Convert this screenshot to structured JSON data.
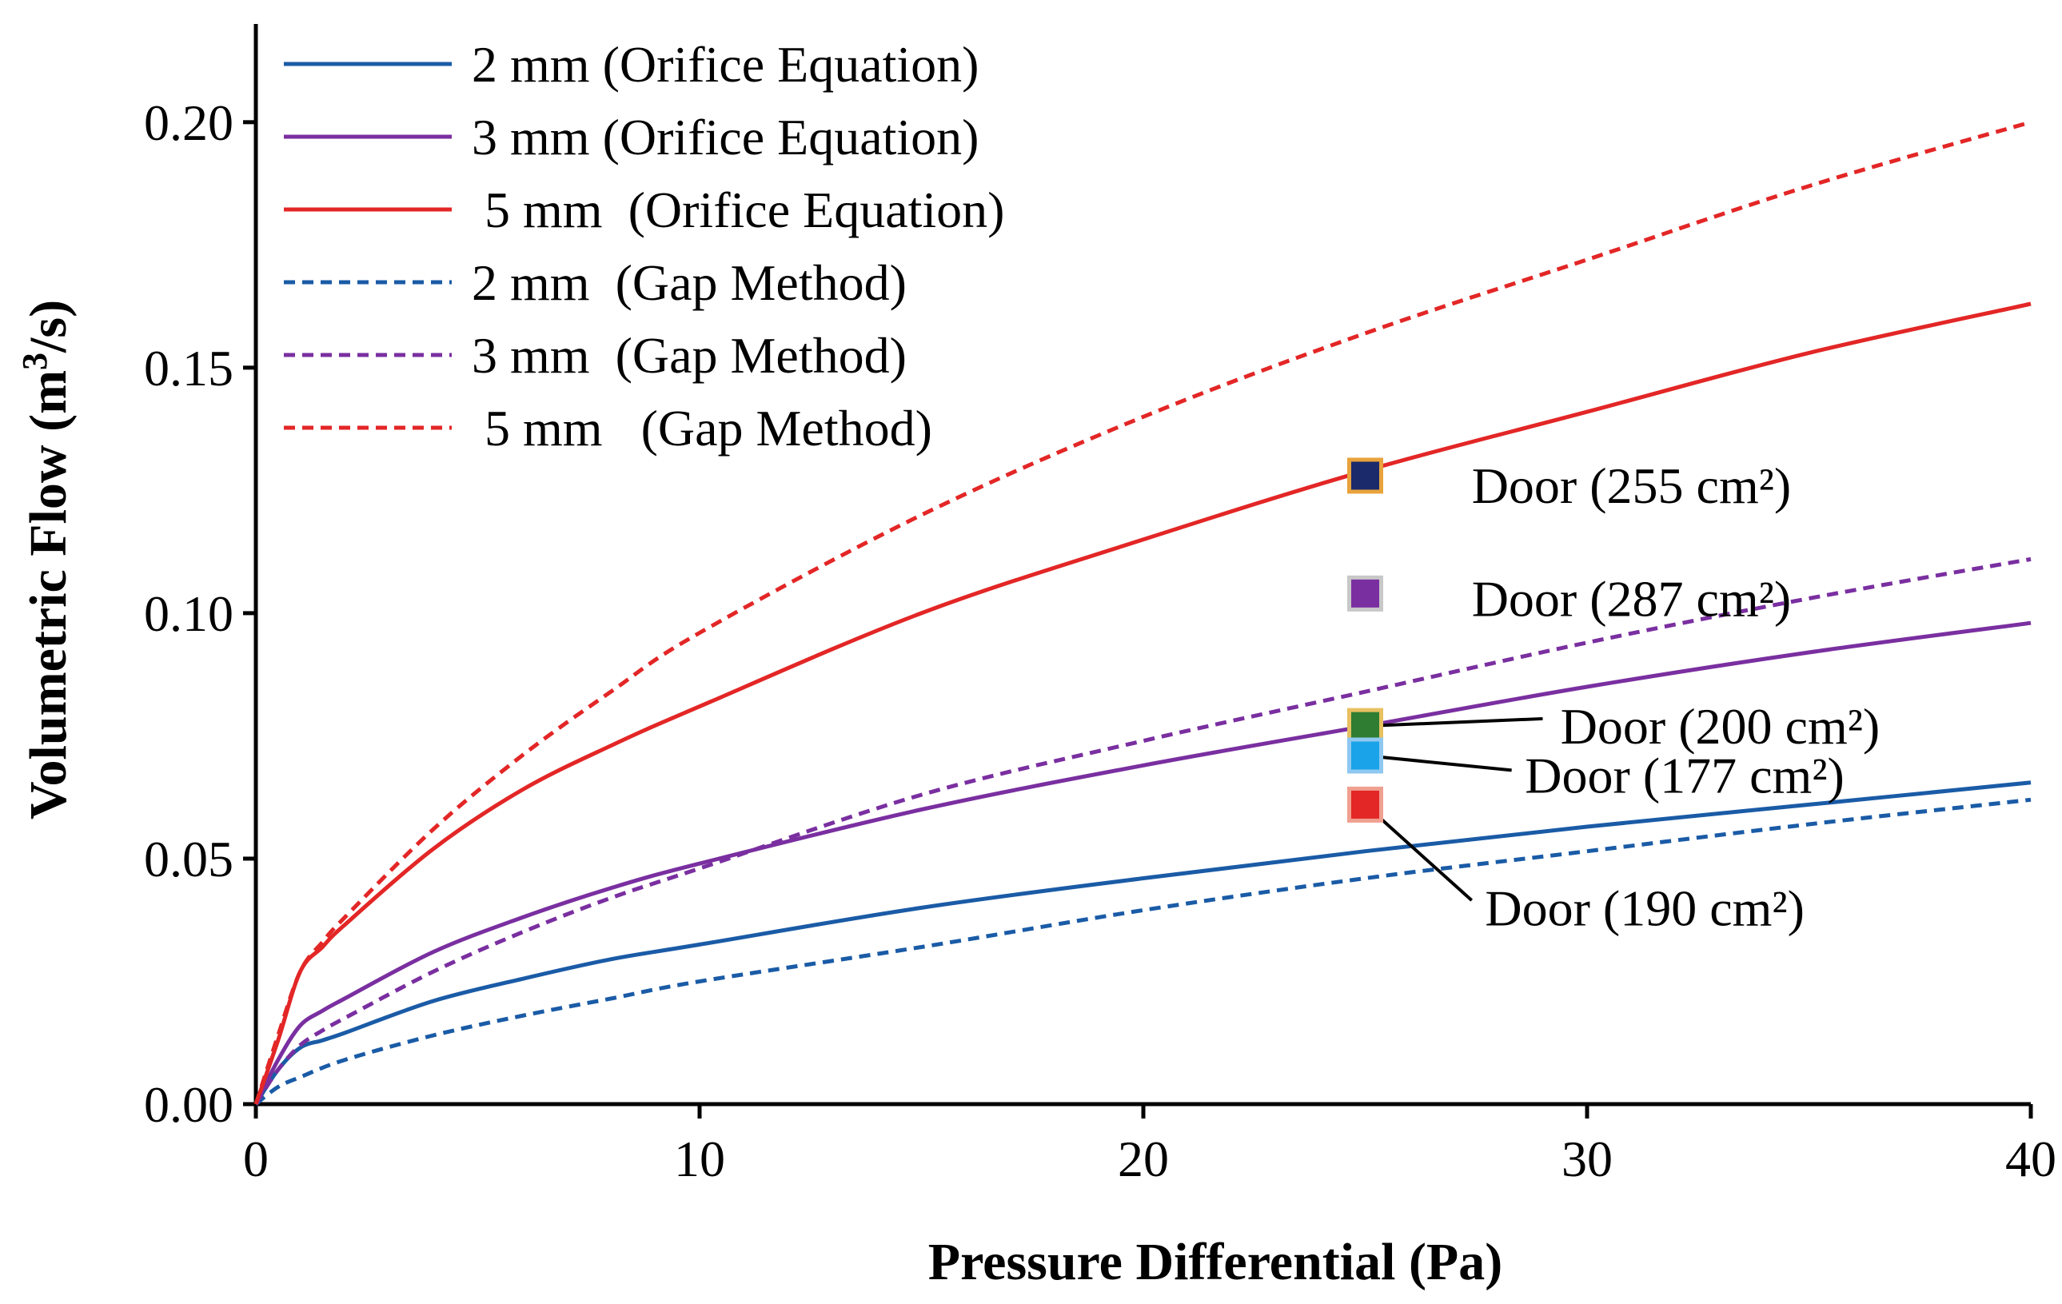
{
  "chart_data": {
    "type": "line",
    "xlabel": "Pressure Differential (Pa)",
    "ylabel": "Volumetric Flow (m",
    "ylabel_sup": "3",
    "ylabel_tail": "/s)",
    "xlim": [
      0,
      40
    ],
    "ylim": [
      0,
      0.22
    ],
    "x_ticks": [
      0,
      10,
      20,
      30,
      40
    ],
    "x_tick_labels": [
      "0",
      "10",
      "20",
      "30",
      "40"
    ],
    "y_ticks": [
      0,
      0.05,
      0.1,
      0.15,
      0.2
    ],
    "y_tick_labels": [
      "0.00",
      "0.05",
      "0.10",
      "0.15",
      "0.20"
    ],
    "grid": false,
    "legend_position": "top-left",
    "series": [
      {
        "name": "2 mm (Orifice Equation)",
        "color": "#1a5ba6",
        "dash": "solid",
        "x": [
          0,
          0.5,
          1,
          1.5,
          2,
          4,
          6,
          8,
          10,
          15,
          20,
          25,
          30,
          35,
          40
        ],
        "y": [
          0,
          0.007,
          0.0115,
          0.013,
          0.0145,
          0.021,
          0.0255,
          0.0295,
          0.0325,
          0.04,
          0.046,
          0.0515,
          0.0565,
          0.061,
          0.0655
        ]
      },
      {
        "name": "3 mm (Orifice Equation)",
        "color": "#7a2fa0",
        "dash": "solid",
        "x": [
          0,
          0.5,
          1,
          1.5,
          2,
          4,
          6,
          8,
          10,
          15,
          20,
          25,
          30,
          35,
          40
        ],
        "y": [
          0,
          0.009,
          0.016,
          0.019,
          0.0215,
          0.031,
          0.038,
          0.044,
          0.049,
          0.06,
          0.069,
          0.077,
          0.085,
          0.092,
          0.098
        ]
      },
      {
        "name": " 5 mm  (Orifice Equation)",
        "color": "#e32626",
        "dash": "solid",
        "x": [
          0,
          0.5,
          1,
          1.5,
          2,
          4,
          6,
          8,
          10,
          15,
          20,
          25,
          30,
          35,
          40
        ],
        "y": [
          0,
          0.013,
          0.027,
          0.032,
          0.0365,
          0.052,
          0.064,
          0.073,
          0.081,
          0.1,
          0.115,
          0.129,
          0.141,
          0.153,
          0.163
        ]
      },
      {
        "name": "2 mm  (Gap Method)",
        "color": "#1a5ba6",
        "dash": "dashed",
        "x": [
          0,
          0.5,
          1,
          2,
          4,
          6,
          8,
          10,
          15,
          20,
          25,
          30,
          35,
          40
        ],
        "y": [
          0,
          0.0035,
          0.0055,
          0.009,
          0.014,
          0.018,
          0.0215,
          0.025,
          0.032,
          0.0395,
          0.046,
          0.0515,
          0.057,
          0.062
        ]
      },
      {
        "name": "3 mm  (Gap Method)",
        "color": "#7a2fa0",
        "dash": "dashed",
        "x": [
          0,
          0.5,
          1,
          1.5,
          2,
          4,
          6,
          8,
          10,
          15,
          20,
          25,
          30,
          35,
          40
        ],
        "y": [
          0,
          0.007,
          0.012,
          0.015,
          0.0175,
          0.027,
          0.035,
          0.042,
          0.048,
          0.063,
          0.074,
          0.084,
          0.094,
          0.103,
          0.111
        ]
      },
      {
        "name": " 5 mm   (Gap Method)",
        "color": "#e32626",
        "dash": "dashed",
        "x": [
          0,
          0.5,
          1,
          1.5,
          2,
          4,
          6,
          8,
          10,
          15,
          20,
          25,
          30,
          35,
          40
        ],
        "y": [
          0,
          0.014,
          0.027,
          0.033,
          0.038,
          0.056,
          0.071,
          0.084,
          0.096,
          0.12,
          0.14,
          0.157,
          0.172,
          0.187,
          0.2
        ]
      }
    ],
    "points": [
      {
        "name": "Door (255 cm²)",
        "x": 25,
        "y": 0.128,
        "fill": "#1b2a6b",
        "stroke": "#e8a33c",
        "label_x": 27.4,
        "label_y": 0.126,
        "leader": false
      },
      {
        "name": "Door (287 cm²)",
        "x": 25,
        "y": 0.104,
        "fill": "#7a2fa0",
        "stroke": "#c8c8c8",
        "label_x": 27.4,
        "label_y": 0.103,
        "leader": false
      },
      {
        "name": "Door (200 cm²)",
        "x": 25,
        "y": 0.077,
        "fill": "#2e7d32",
        "stroke": "#e8c060",
        "label_x": 29.4,
        "label_y": 0.077,
        "leader": true,
        "leader_end_x": 29.0,
        "leader_end_y": 0.0785
      },
      {
        "name": "Door (177 cm²)",
        "x": 25,
        "y": 0.071,
        "fill": "#1aa3e8",
        "stroke": "#8fc8f0",
        "label_x": 28.6,
        "label_y": 0.067,
        "leader": true,
        "leader_end_x": 28.3,
        "leader_end_y": 0.068
      },
      {
        "name": "Door (190 cm²)",
        "x": 25,
        "y": 0.061,
        "fill": "#e32626",
        "stroke": "#f0a090",
        "label_x": 27.7,
        "label_y": 0.04,
        "leader": true,
        "leader_end_x": 27.4,
        "leader_end_y": 0.0415
      }
    ]
  }
}
